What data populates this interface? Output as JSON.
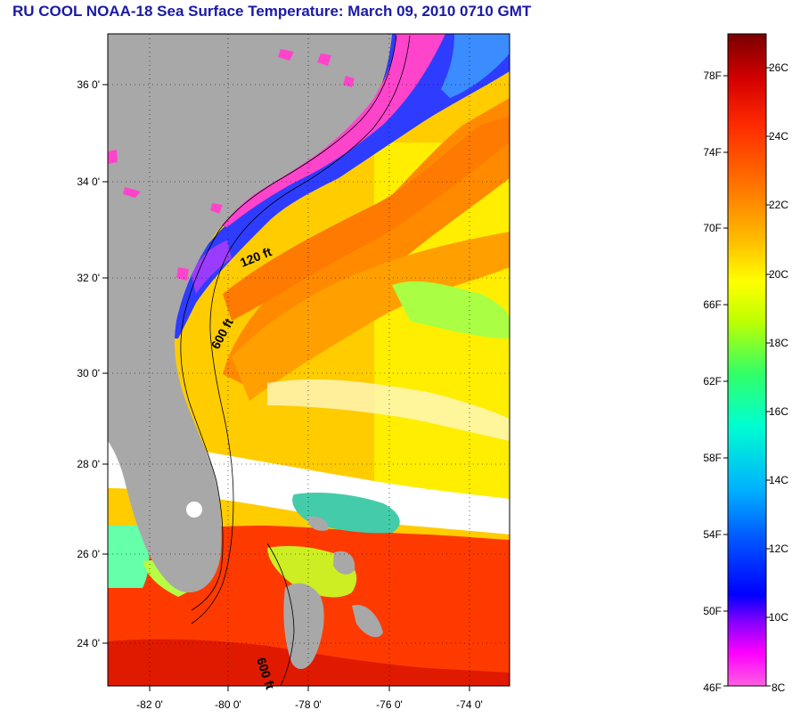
{
  "title": "RU COOL  NOAA-18  Sea Surface Temperature:  March 09, 2010 0710 GMT",
  "map": {
    "lat_labels": [
      "36 0'",
      "34 0'",
      "32 0'",
      "30 0'",
      "28 0'",
      "26 0'",
      "24 0'"
    ],
    "lon_labels": [
      "-82 0'",
      "-80 0'",
      "-78 0'",
      "-76 0'",
      "-74 0'"
    ],
    "contour_labels": [
      "120 ft",
      "600 ft",
      "600 ft"
    ],
    "colors": {
      "land": "#a8a8a8",
      "cloud": "#ffffff",
      "cold": "#ff44cc",
      "cool": "#2244ff",
      "mid": "#ffee00",
      "warm": "#ff8800",
      "hot": "#ee2200"
    }
  },
  "colorbar": {
    "fahrenheit_labels": [
      "78F",
      "74F",
      "70F",
      "66F",
      "62F",
      "58F",
      "54F",
      "50F",
      "46F"
    ],
    "celsius_labels": [
      "26C",
      "24C",
      "22C",
      "20C",
      "18C",
      "16C",
      "14C",
      "12C",
      "10C",
      "8C"
    ],
    "range_celsius": [
      8,
      27
    ],
    "gradient": [
      "#7a0000",
      "#d40000",
      "#ff2a00",
      "#ff7a00",
      "#ffc000",
      "#ffff00",
      "#bfff00",
      "#33ff66",
      "#00ffd0",
      "#00b0ff",
      "#0050ff",
      "#0000ff",
      "#8000ff",
      "#ff00ff",
      "#ff60e0"
    ]
  }
}
